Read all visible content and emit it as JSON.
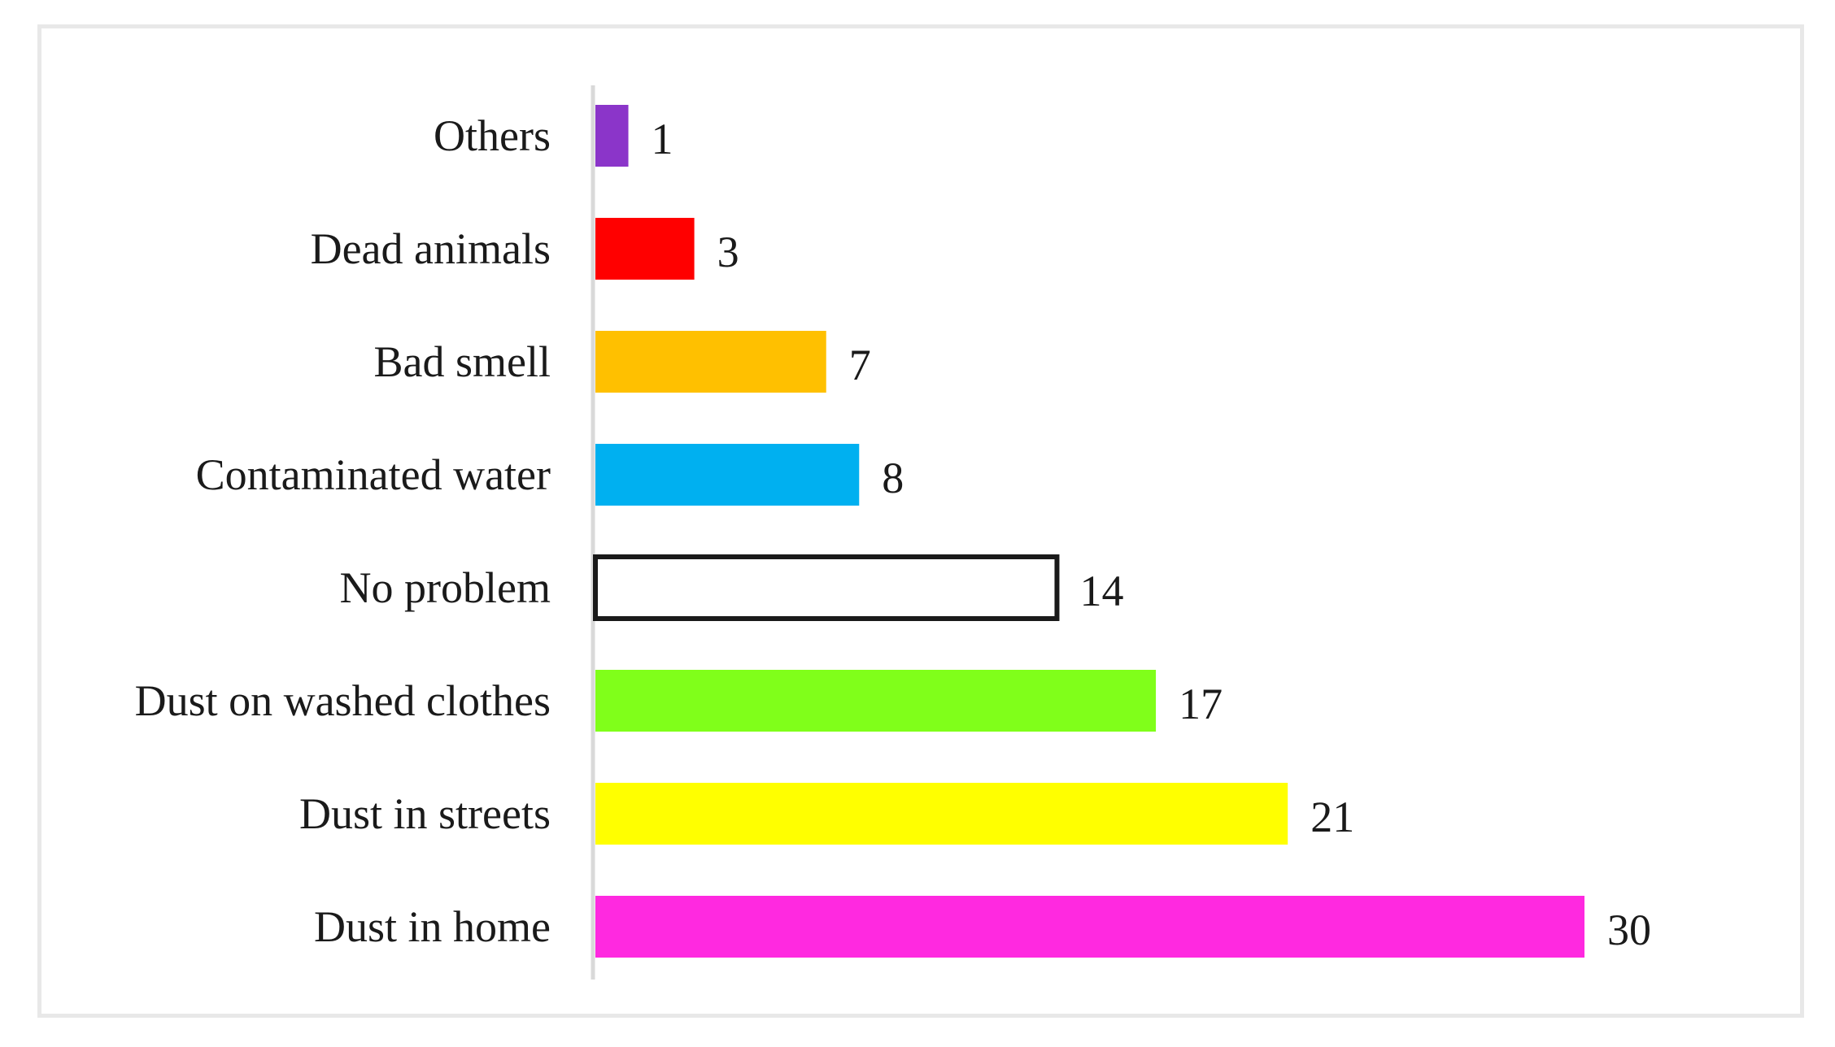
{
  "chart_data": {
    "type": "bar",
    "orientation": "horizontal",
    "categories": [
      "Others",
      "Dead animals",
      "Bad smell",
      "Contaminated water",
      "No problem",
      "Dust on washed clothes",
      "Dust in streets",
      "Dust in home"
    ],
    "values": [
      1,
      3,
      7,
      8,
      14,
      17,
      21,
      30
    ],
    "colors": [
      "#8b35c9",
      "#ff0000",
      "#ffc000",
      "#00b0f0",
      "#ffffff",
      "#80ff1a",
      "#ffff00",
      "#ff29e0"
    ],
    "outlined": [
      false,
      false,
      false,
      false,
      true,
      false,
      false,
      false
    ],
    "data_labels": [
      "1",
      "3",
      "7",
      "8",
      "14",
      "17",
      "21",
      "30"
    ],
    "title": "",
    "xlabel": "",
    "ylabel": "",
    "xlim": [
      0,
      30
    ],
    "grid": false,
    "legend": "none"
  }
}
